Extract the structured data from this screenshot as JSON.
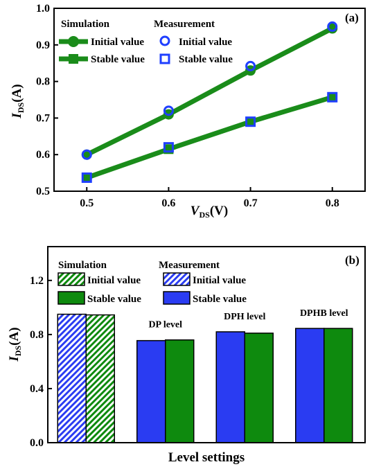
{
  "chart_data": [
    {
      "type": "line",
      "panel_label": "(a)",
      "xlabel": {
        "main": "V",
        "sub": "DS",
        "unit": "(V)"
      },
      "ylabel": {
        "main": "I",
        "sub": "DS",
        "unit": "(A)"
      },
      "xlim": [
        0.46,
        0.84
      ],
      "ylim": [
        0.5,
        1.0
      ],
      "x_ticks": [
        "0.5",
        "0.6",
        "0.7",
        "0.8"
      ],
      "y_ticks": [
        "0.5",
        "0.6",
        "0.7",
        "0.8",
        "0.9",
        "1.0"
      ],
      "x": [
        0.5,
        0.6,
        0.7,
        0.8
      ],
      "legend": {
        "simulation_heading": "Simulation",
        "measurement_heading": "Measurement",
        "initial_label": "Initial value",
        "stable_label": "Stable value"
      },
      "series": [
        {
          "group": "Simulation",
          "name": "Initial value",
          "style": "line-circle",
          "color": "#1a8c1a",
          "values": [
            0.6,
            0.71,
            0.83,
            0.945
          ]
        },
        {
          "group": "Simulation",
          "name": "Stable value",
          "style": "line-square",
          "color": "#1a8c1a",
          "values": [
            0.537,
            0.615,
            0.69,
            0.757
          ]
        },
        {
          "group": "Measurement",
          "name": "Initial value",
          "style": "open-circle",
          "color": "#1f3fff",
          "values": [
            0.6,
            0.72,
            0.842,
            0.95
          ]
        },
        {
          "group": "Measurement",
          "name": "Stable value",
          "style": "open-square",
          "color": "#1f3fff",
          "values": [
            0.537,
            0.62,
            0.69,
            0.757
          ]
        }
      ]
    },
    {
      "type": "bar",
      "panel_label": "(b)",
      "xlabel": "Level settings",
      "ylabel": {
        "main": "I",
        "sub": "DS",
        "unit": "(A)"
      },
      "ylim": [
        0.0,
        1.45
      ],
      "y_ticks": [
        "0.0",
        "0.4",
        "0.8",
        "1.2"
      ],
      "categories": [
        "",
        "DP level",
        "DPH level",
        "DPHB level"
      ],
      "legend": {
        "simulation_heading": "Simulation",
        "measurement_heading": "Measurement",
        "initial_label": "Initial value",
        "stable_label": "Stable value"
      },
      "series": [
        {
          "name": "Measurement",
          "color": "#2a3cf2",
          "values": [
            0.95,
            0.755,
            0.82,
            0.845
          ],
          "hatched_first": true
        },
        {
          "name": "Simulation",
          "color": "#0e8a0e",
          "values": [
            0.945,
            0.76,
            0.81,
            0.845
          ],
          "hatched_first": true
        }
      ]
    }
  ]
}
